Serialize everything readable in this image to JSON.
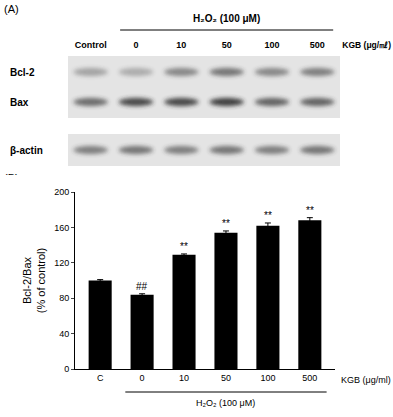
{
  "panel_a": {
    "label": "(A)",
    "treatment": "H₂O₂ (100 μM)",
    "lanes": [
      "Control",
      "0",
      "10",
      "50",
      "100",
      "500"
    ],
    "lane_unit": "KGB (μg/㎖)",
    "rows": [
      "Bcl-2",
      "Bax",
      "β-actin"
    ]
  },
  "panel_b_label": "(B)",
  "chart_data": {
    "type": "bar",
    "categories": [
      "C",
      "0",
      "10",
      "50",
      "100",
      "500"
    ],
    "values": [
      100,
      84,
      129,
      154,
      162,
      168
    ],
    "errors": [
      1,
      1,
      1,
      2,
      3,
      3
    ],
    "significance": [
      null,
      "##",
      "**",
      "**",
      "**",
      "**"
    ],
    "color": "#000000",
    "ylabel": "Bcl-2/Bax\n(% of control)",
    "x_annotation": "KGB (μg/ml)",
    "group_label": "H₂O₂ (100 μM)",
    "ylim": [
      0,
      200
    ],
    "yticks": [
      0,
      40,
      80,
      120,
      160,
      200
    ],
    "grid": false
  }
}
